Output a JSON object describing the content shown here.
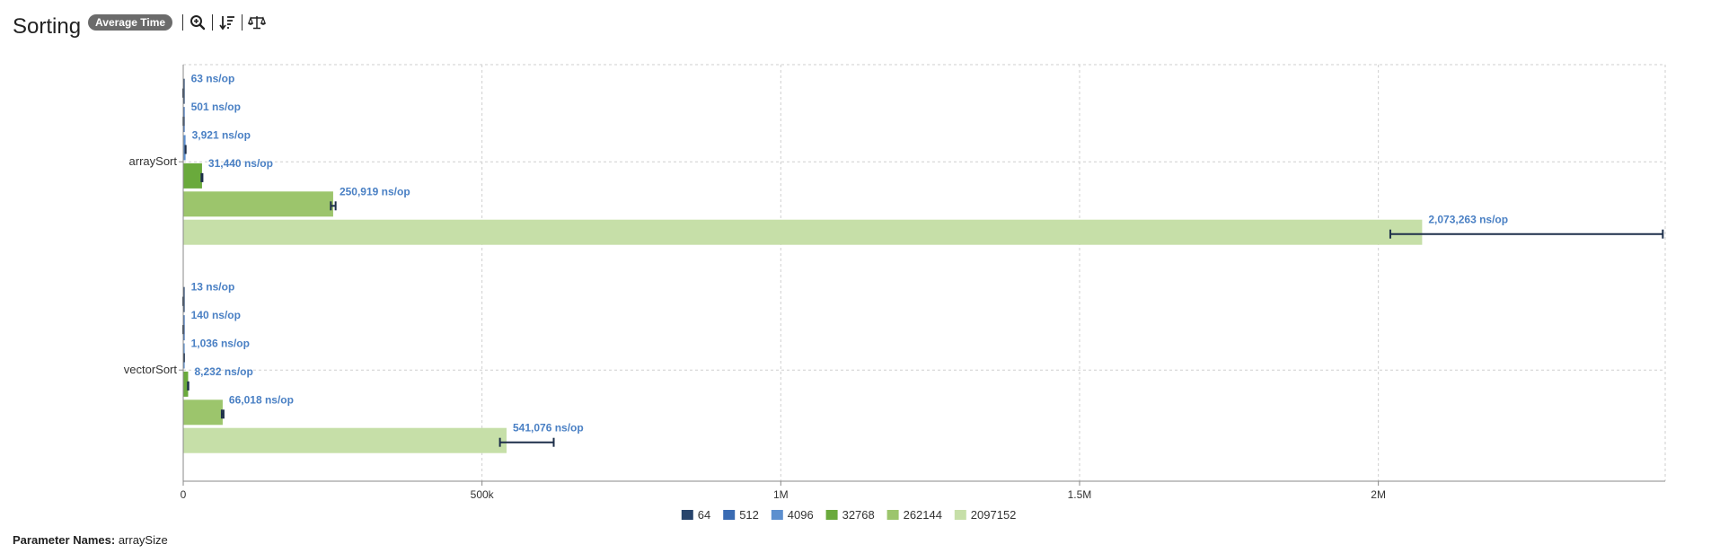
{
  "header": {
    "title": "Sorting",
    "mode_badge": "Average Time"
  },
  "toolbar": {
    "icons": [
      "zoom-icon",
      "sort-icon",
      "balance-icon"
    ]
  },
  "params": {
    "label": "Parameter Names:",
    "value": "arraySize"
  },
  "chart_data": {
    "type": "bar",
    "orientation": "horizontal",
    "title": "",
    "xlabel": "",
    "ylabel": "",
    "xlim": [
      0,
      2480000
    ],
    "xticks": [
      {
        "value": 0,
        "label": "0"
      },
      {
        "value": 500000,
        "label": "500k"
      },
      {
        "value": 1000000,
        "label": "1M"
      },
      {
        "value": 1500000,
        "label": "1.5M"
      },
      {
        "value": 2000000,
        "label": "2M"
      }
    ],
    "grid": true,
    "legend_position": "bottom",
    "categories": [
      "arraySort",
      "vectorSort"
    ],
    "series": [
      {
        "name": "64",
        "color": "#27446c",
        "values": [
          63,
          13
        ],
        "labels": [
          "63 ns/op",
          "13 ns/op"
        ],
        "errors": [
          [
            60,
            66
          ],
          [
            12,
            14
          ]
        ]
      },
      {
        "name": "512",
        "color": "#3a6bb3",
        "values": [
          501,
          140
        ],
        "labels": [
          "501 ns/op",
          "140 ns/op"
        ],
        "errors": [
          [
            490,
            512
          ],
          [
            136,
            144
          ]
        ]
      },
      {
        "name": "4096",
        "color": "#5c8fcf",
        "values": [
          3921,
          1036
        ],
        "labels": [
          "3,921 ns/op",
          "1,036 ns/op"
        ],
        "errors": [
          [
            3850,
            3990
          ],
          [
            1010,
            1060
          ]
        ]
      },
      {
        "name": "32768",
        "color": "#6aaa3c",
        "values": [
          31440,
          8232
        ],
        "labels": [
          "31,440 ns/op",
          "8,232 ns/op"
        ],
        "errors": [
          [
            30600,
            32200
          ],
          [
            7900,
            8600
          ]
        ]
      },
      {
        "name": "262144",
        "color": "#9cc56c",
        "values": [
          250919,
          66018
        ],
        "labels": [
          "250,919 ns/op",
          "66,018 ns/op"
        ],
        "errors": [
          [
            247000,
            255000
          ],
          [
            64500,
            67500
          ]
        ]
      },
      {
        "name": "2097152",
        "color": "#c6dfa8",
        "values": [
          2073263,
          541076
        ],
        "labels": [
          "2,073,263 ns/op",
          "541,076 ns/op"
        ],
        "errors": [
          [
            2020000,
            2476000
          ],
          [
            530000,
            620000
          ]
        ]
      }
    ]
  }
}
